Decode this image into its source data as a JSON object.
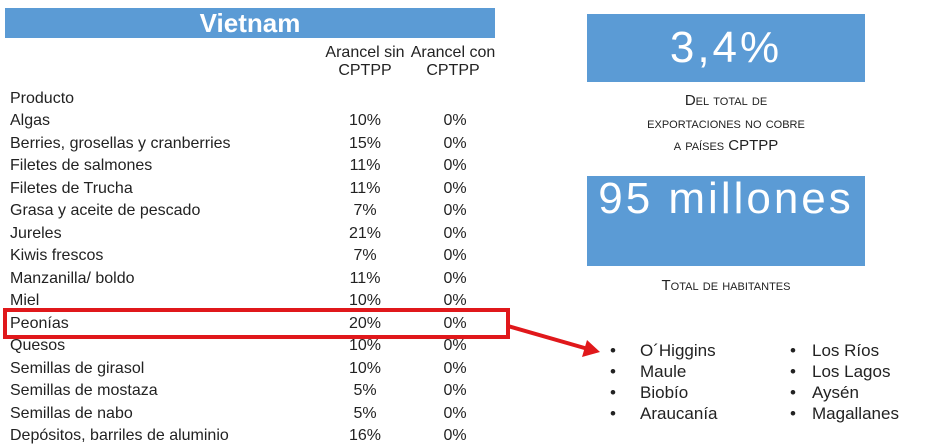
{
  "table": {
    "title": "Vietnam",
    "headers": [
      "Producto",
      "Arancel sin CPTPP",
      "Arancel con CPTPP"
    ],
    "rows": [
      [
        "Algas",
        "10%",
        "0%"
      ],
      [
        "Berries, grosellas y cranberries",
        "15%",
        "0%"
      ],
      [
        "Filetes de salmones",
        "11%",
        "0%"
      ],
      [
        "Filetes de Trucha",
        "11%",
        "0%"
      ],
      [
        "Grasa y aceite de pescado",
        "7%",
        "0%"
      ],
      [
        "Jureles",
        "21%",
        "0%"
      ],
      [
        "Kiwis frescos",
        "7%",
        "0%"
      ],
      [
        "Manzanilla/ boldo",
        "11%",
        "0%"
      ],
      [
        "Miel",
        "10%",
        "0%"
      ],
      [
        "Peonías",
        "20%",
        "0%"
      ],
      [
        "Quesos",
        "10%",
        "0%"
      ],
      [
        "Semillas de girasol",
        "10%",
        "0%"
      ],
      [
        "Semillas de mostaza",
        "5%",
        "0%"
      ],
      [
        "Semillas de nabo",
        "5%",
        "0%"
      ],
      [
        "Depósitos, barriles de aluminio",
        "16%",
        "0%"
      ]
    ]
  },
  "stats": [
    {
      "value": "3,4%",
      "caption": [
        "Del total de",
        "exportaciones no cobre",
        "a países CPTPP"
      ]
    },
    {
      "value": "95 millones",
      "caption": [
        "Total de habitantes"
      ]
    }
  ],
  "regions": [
    [
      "O´Higgins",
      "Maule",
      "Biobío",
      "Araucanía"
    ],
    [
      "Los Ríos",
      "Los Lagos",
      "Aysén",
      "Magallanes"
    ]
  ]
}
